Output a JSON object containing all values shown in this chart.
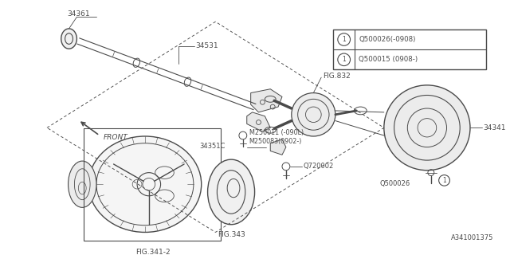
{
  "bg_color": "#ffffff",
  "line_color": "#4a4a4a",
  "footer_id": "A341001375",
  "legend_lines": [
    "Q500026(-0908)",
    "Q500015 (0908-)"
  ],
  "fig_w": 640,
  "fig_h": 320
}
